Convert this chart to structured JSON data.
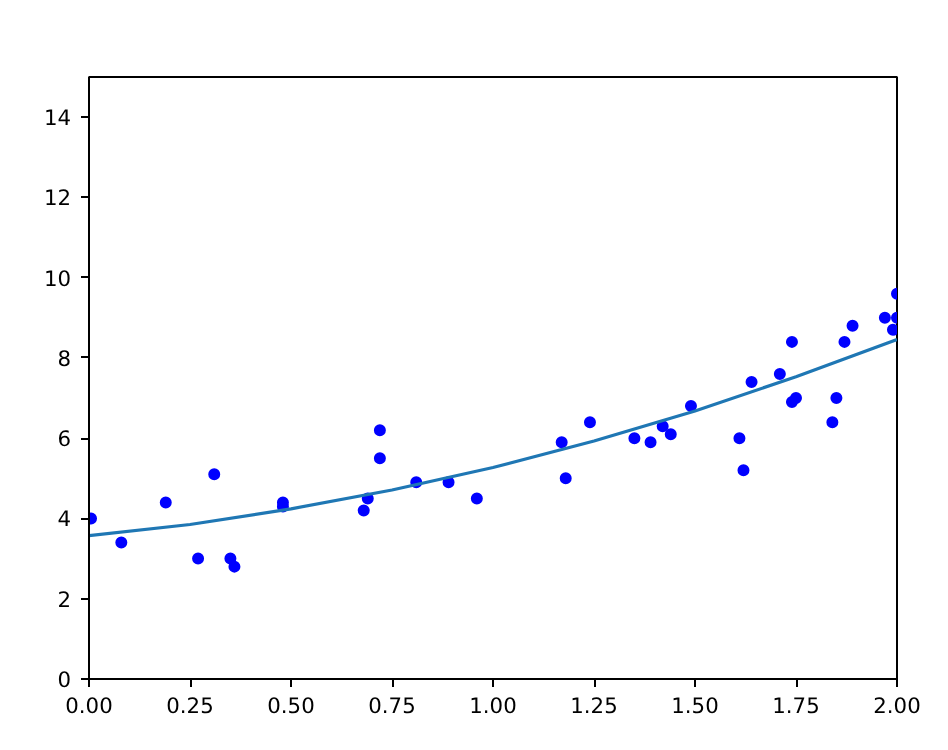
{
  "chart_data": {
    "type": "scatter",
    "xlim": [
      0,
      2
    ],
    "ylim": [
      0,
      15
    ],
    "xticks": [
      {
        "value": 0,
        "label": "0.00"
      },
      {
        "value": 0.25,
        "label": "0.25"
      },
      {
        "value": 0.5,
        "label": "0.50"
      },
      {
        "value": 0.75,
        "label": "0.75"
      },
      {
        "value": 1,
        "label": "1.00"
      },
      {
        "value": 1.25,
        "label": "1.25"
      },
      {
        "value": 1.5,
        "label": "1.50"
      },
      {
        "value": 1.75,
        "label": "1.75"
      },
      {
        "value": 2,
        "label": "2.00"
      }
    ],
    "yticks": [
      0,
      2,
      4,
      6,
      8,
      10,
      12,
      14
    ],
    "grid": false,
    "series": [
      {
        "marker": "circle",
        "color": "#0000ff",
        "x": [
          0.005,
          0.08,
          0.19,
          0.27,
          0.31,
          0.35,
          0.36,
          0.48,
          0.48,
          0.68,
          0.69,
          0.72,
          0.72,
          0.81,
          0.89,
          0.96,
          1.17,
          1.18,
          1.24,
          1.35,
          1.39,
          1.42,
          1.44,
          1.49,
          1.61,
          1.62,
          1.64,
          1.71,
          1.74,
          1.74,
          1.75,
          1.84,
          1.85,
          1.87,
          1.89,
          1.97,
          1.99,
          2.0,
          2.0
        ],
        "values": [
          4.0,
          3.4,
          4.4,
          3.0,
          5.1,
          3.0,
          2.8,
          4.4,
          4.3,
          4.2,
          4.5,
          6.2,
          5.5,
          4.9,
          4.9,
          4.5,
          5.9,
          5.0,
          6.4,
          6.0,
          5.9,
          6.3,
          6.1,
          6.8,
          6.0,
          5.2,
          7.4,
          7.6,
          8.4,
          6.9,
          7.0,
          6.4,
          7.0,
          8.4,
          8.8,
          9.0,
          8.7,
          9.0,
          9.6
        ]
      },
      {
        "type": "line",
        "marker": "none",
        "line_style": "solid",
        "color": "#1f77b4",
        "x": [
          0,
          0.25,
          0.5,
          0.75,
          1,
          1.25,
          1.5,
          1.75,
          2
        ],
        "values": [
          3.57,
          3.85,
          4.24,
          4.71,
          5.27,
          5.93,
          6.68,
          7.53,
          8.46
        ]
      }
    ]
  }
}
